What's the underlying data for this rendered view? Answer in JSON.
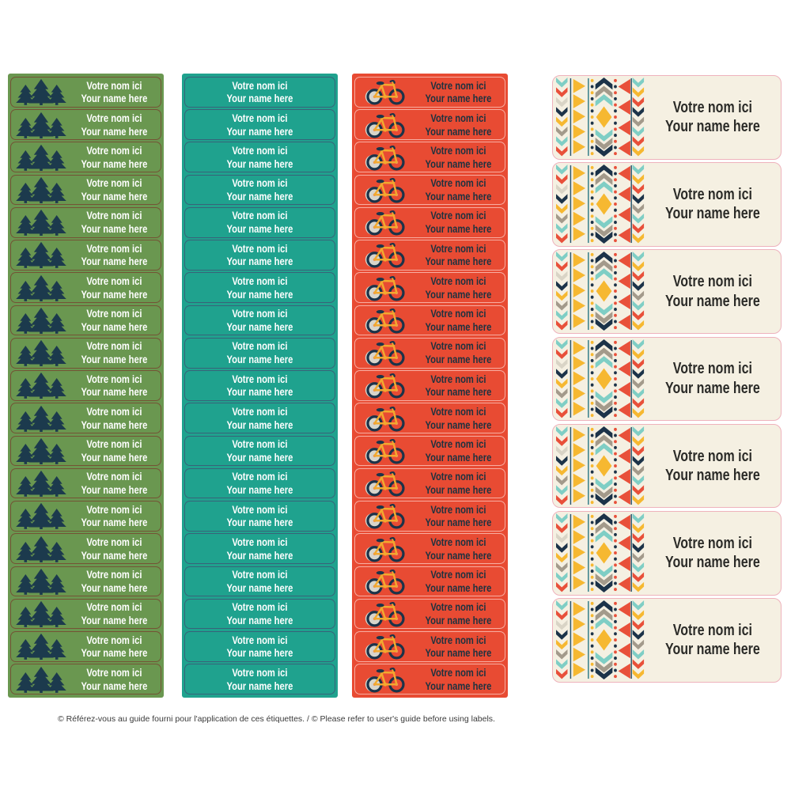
{
  "caption": "© Référez-vous au guide fourni pour l'application de ces étiquettes. / © Please refer to user's guide before using labels.",
  "label_text": {
    "line1": "Votre nom ici",
    "line2": "Your name here"
  },
  "columns": [
    {
      "name": "pine-trees-green-labels",
      "style": "green",
      "icon": "pine-trees-icon",
      "rows": 19,
      "bg": "#6A9750",
      "text_color": "#FFFFFF"
    },
    {
      "name": "plain-teal-labels",
      "style": "teal",
      "icon": null,
      "rows": 19,
      "bg": "#1FA28E",
      "text_color": "#FFFFFF"
    },
    {
      "name": "bicycle-red-labels",
      "style": "red",
      "icon": "bicycle-icon",
      "rows": 19,
      "bg": "#E84B33",
      "text_color": "#1C3240"
    },
    {
      "name": "aztec-cream-large-labels",
      "style": "big",
      "icon": "aztec-pattern",
      "rows": 7,
      "bg": "#F5F0E2",
      "text_color": "#2B2B28"
    }
  ],
  "palette": {
    "teal_light": "#7FCEC5",
    "red": "#E8503A",
    "navy": "#1C3349",
    "yellow": "#F6B831",
    "taupe": "#A39A8B",
    "light_gray": "#D9D4C6",
    "cream": "#F5F0E2",
    "pink_border": "#EEB2BC",
    "tree_navy": "#1C3A4D",
    "bike_frame_yellow": "#F2A92F",
    "hub_pink": "#E8897C",
    "line_navy": "#27536A",
    "line_teal": "#2E7A86"
  }
}
